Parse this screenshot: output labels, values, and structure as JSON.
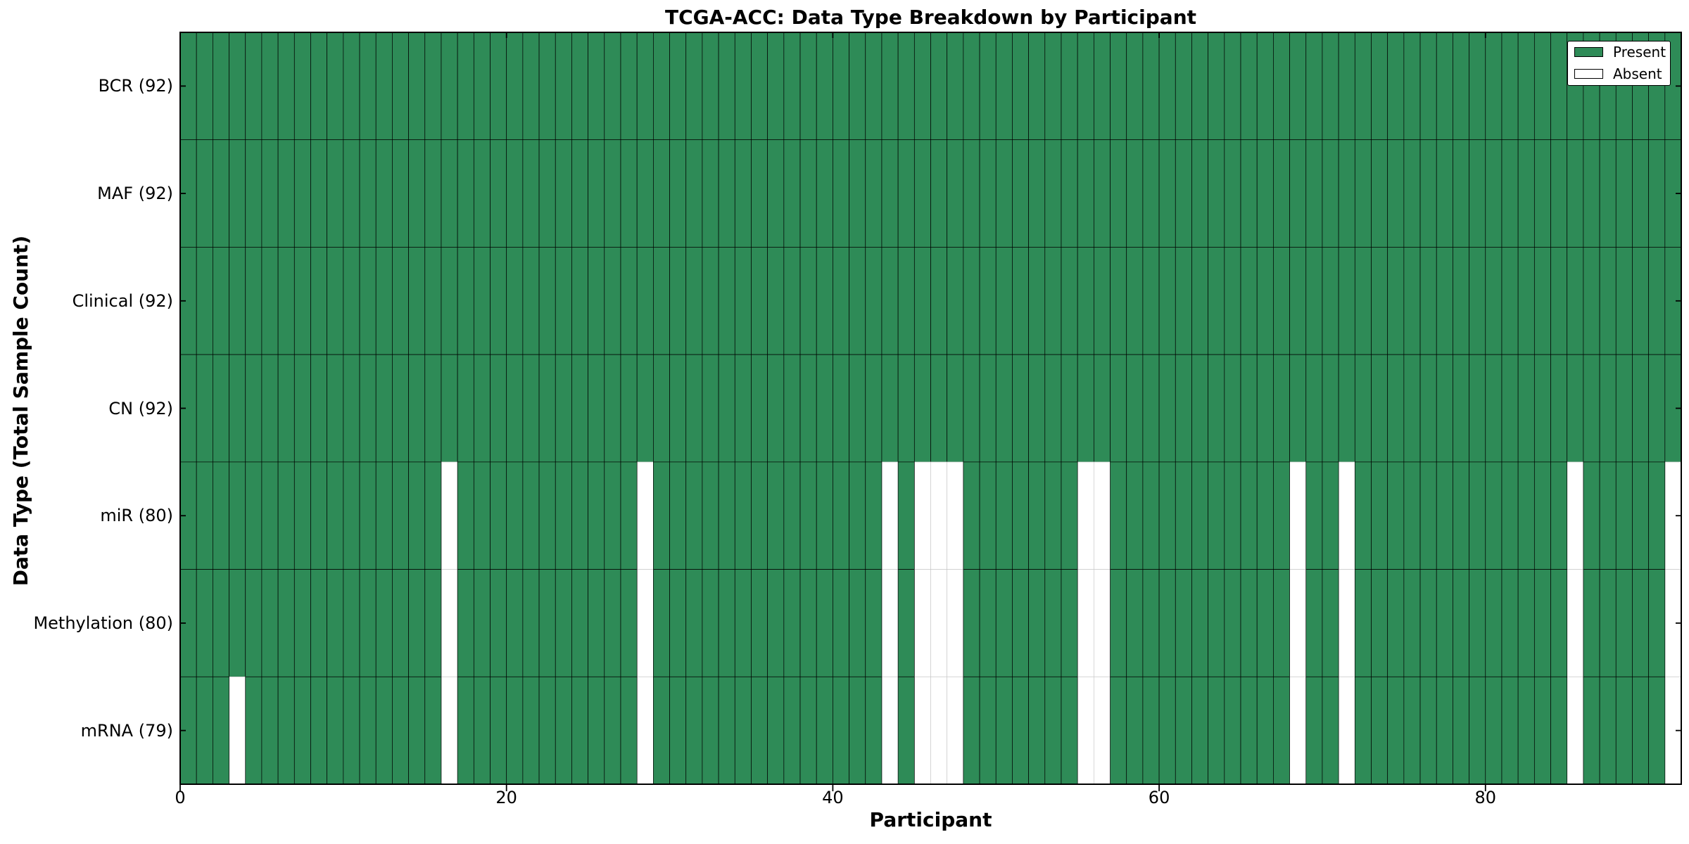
{
  "title": "TCGA-ACC: Data Type Breakdown by Participant",
  "chart_data": {
    "type": "heatmap",
    "title": "TCGA-ACC: Data Type Breakdown by Participant",
    "xlabel": "Participant",
    "ylabel": "Data Type (Total Sample Count)",
    "x_range": [
      0,
      92
    ],
    "n_participants": 92,
    "x_ticks": [
      0,
      20,
      40,
      60,
      80
    ],
    "grid": false,
    "legend_position": "upper right",
    "legend": [
      {
        "label": "Present",
        "color": "#2E8B57"
      },
      {
        "label": "Absent",
        "color": "#FFFFFF"
      }
    ],
    "rows": [
      {
        "label": "BCR (92)",
        "name": "BCR",
        "present_count": 92,
        "absent_participants": []
      },
      {
        "label": "MAF (92)",
        "name": "MAF",
        "present_count": 92,
        "absent_participants": []
      },
      {
        "label": "Clinical (92)",
        "name": "Clinical",
        "present_count": 92,
        "absent_participants": []
      },
      {
        "label": "CN (92)",
        "name": "CN",
        "present_count": 92,
        "absent_participants": []
      },
      {
        "label": "miR (80)",
        "name": "miR",
        "present_count": 80,
        "absent_participants": [
          16,
          28,
          43,
          45,
          46,
          47,
          55,
          56,
          68,
          71,
          85,
          91
        ]
      },
      {
        "label": "Methylation (80)",
        "name": "Methylation",
        "present_count": 80,
        "absent_participants": [
          16,
          28,
          43,
          45,
          46,
          47,
          55,
          56,
          68,
          71,
          85,
          91
        ]
      },
      {
        "label": "mRNA (79)",
        "name": "mRNA",
        "present_count": 79,
        "absent_participants": [
          3,
          16,
          28,
          43,
          45,
          46,
          47,
          55,
          56,
          68,
          71,
          85,
          91
        ]
      }
    ],
    "colors": {
      "present": "#2E8B57",
      "absent": "#FFFFFF",
      "present_edge": "#000000",
      "absent_edge": "#C9C9C9",
      "spine": "#000000",
      "background": "#FFFFFF"
    }
  }
}
